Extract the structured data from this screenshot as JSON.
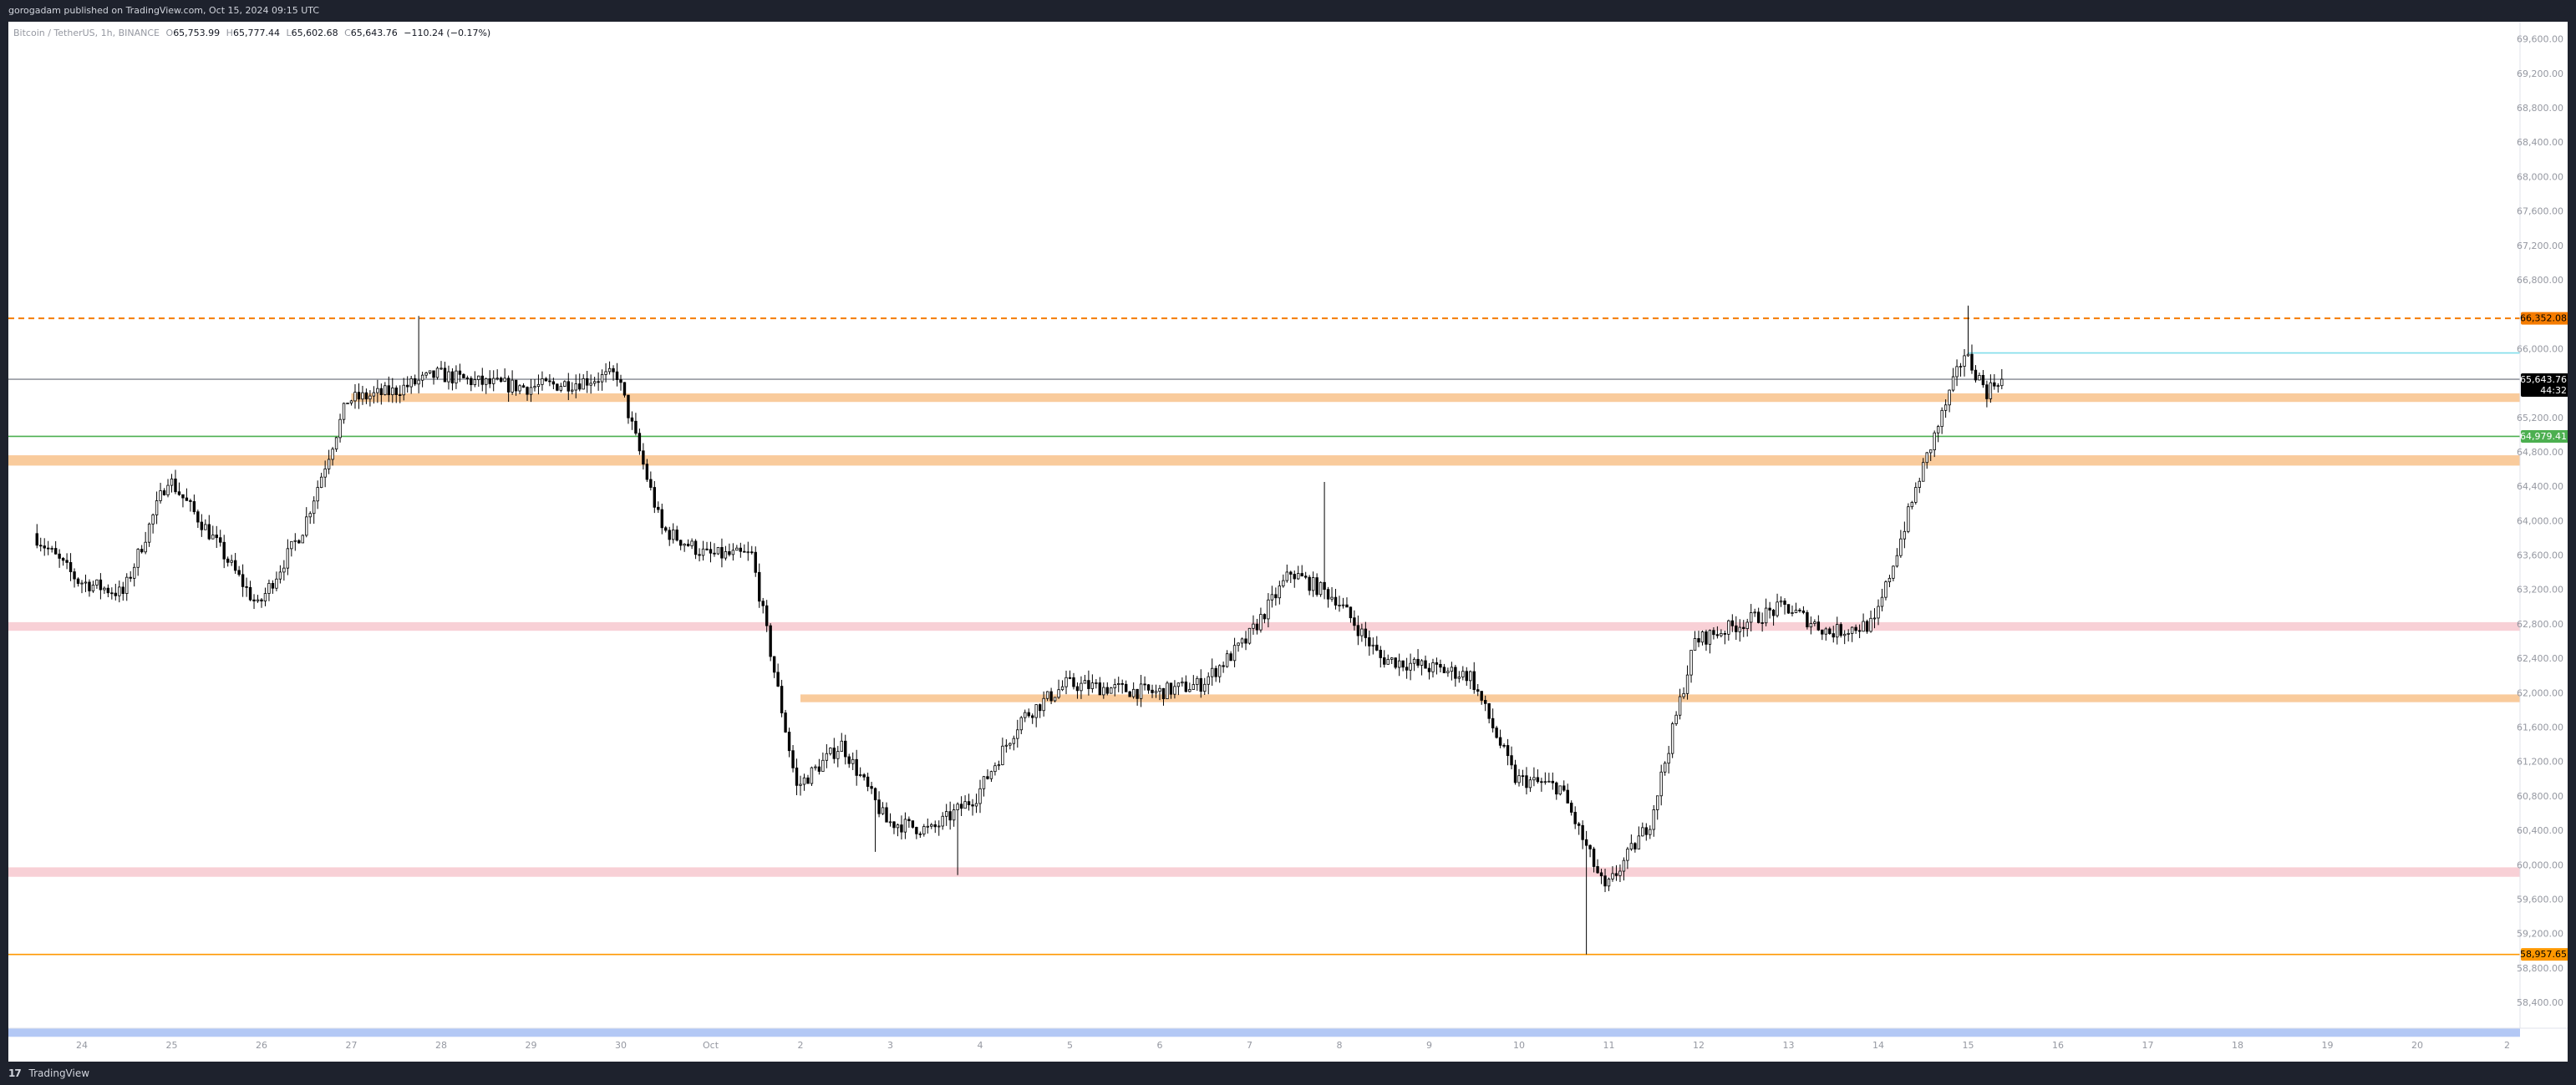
{
  "header": {
    "publish_text": "gorogadam published on TradingView.com, Oct 15, 2024 09:15 UTC"
  },
  "legend": {
    "symbol": "Bitcoin / TetherUS, 1h, BINANCE",
    "open_label": "O",
    "open": "65,753.99",
    "high_label": "H",
    "high": "65,777.44",
    "low_label": "L",
    "low": "65,602.68",
    "close_label": "C",
    "close": "65,643.76",
    "change": "−110.24 (−0.17%)"
  },
  "footer": {
    "logo_text": "17",
    "brand": "TradingView"
  },
  "price_scale": {
    "ticks": [
      "69,600.00",
      "69,200.00",
      "68,800.00",
      "68,400.00",
      "68,000.00",
      "67,600.00",
      "67,200.00",
      "66,800.00",
      "66,000.00",
      "65,200.00",
      "64,800.00",
      "64,400.00",
      "64,000.00",
      "63,600.00",
      "63,200.00",
      "62,800.00",
      "62,400.00",
      "62,000.00",
      "61,600.00",
      "61,200.00",
      "60,800.00",
      "60,400.00",
      "60,000.00",
      "59,600.00",
      "59,200.00",
      "58,800.00",
      "58,400.00"
    ],
    "badges": [
      {
        "value": "66,352.08",
        "color": "#f57c00",
        "text_color": "#000000"
      },
      {
        "value": "65,643.76",
        "sub": "44:32",
        "color": "#000000",
        "text_color": "#ffffff"
      },
      {
        "value": "64,979.41",
        "color": "#4caf50",
        "text_color": "#ffffff"
      },
      {
        "value": "58,957.65",
        "color": "#ff9800",
        "text_color": "#000000"
      }
    ]
  },
  "time_scale": {
    "ticks": [
      "24",
      "25",
      "26",
      "27",
      "28",
      "29",
      "30",
      "Oct",
      "2",
      "3",
      "4",
      "5",
      "6",
      "7",
      "8",
      "9",
      "10",
      "11",
      "12",
      "13",
      "14",
      "15",
      "16",
      "17",
      "18",
      "19",
      "20",
      "2"
    ]
  },
  "colors": {
    "background": "#ffffff",
    "candle": "#000000",
    "orange_zone": "#f9cb9c",
    "pink_zone": "#f8d0d6",
    "blue_band": "#b3c8f5",
    "green_line": "#4caf50",
    "dashed_line": "#f57c00",
    "level_line": "#ff9800",
    "cyan_line": "#80deea"
  },
  "chart_data": {
    "type": "candlestick",
    "symbol": "BTCUSDT",
    "interval": "1h",
    "ylim": [
      58100,
      69800
    ],
    "horizontal_levels": [
      {
        "price": 66352.08,
        "style": "dashed",
        "color": "#f57c00"
      },
      {
        "price": 65950,
        "style": "solid",
        "color": "#80deea",
        "from": "Oct 15"
      },
      {
        "price": 65643.76,
        "style": "solid",
        "color": "#9598a1"
      },
      {
        "price": 64979.41,
        "style": "solid",
        "color": "#4caf50"
      },
      {
        "price": 58957.65,
        "style": "solid",
        "color": "#ff9800"
      }
    ],
    "zones": [
      {
        "from": 65380,
        "to": 65480,
        "color": "#f9cb9c",
        "start": "Sep 27"
      },
      {
        "from": 64640,
        "to": 64760,
        "color": "#f9cb9c",
        "start": "Sep 23"
      },
      {
        "from": 62720,
        "to": 62820,
        "color": "#f8d0d6",
        "start": "Sep 23"
      },
      {
        "from": 61890,
        "to": 61980,
        "color": "#f9cb9c",
        "start": "Oct 2"
      },
      {
        "from": 59860,
        "to": 59970,
        "color": "#f8d0d6",
        "start": "Sep 23"
      },
      {
        "from": 58000,
        "to": 58100,
        "color": "#b3c8f5",
        "start": "Sep 23"
      }
    ],
    "path": [
      {
        "x": "Sep 23 12:00",
        "y": 63850
      },
      {
        "x": "Sep 24 00:00",
        "y": 63300
      },
      {
        "x": "Sep 24 12:00",
        "y": 63150
      },
      {
        "x": "Sep 25 00:00",
        "y": 64500
      },
      {
        "x": "Sep 25 12:00",
        "y": 63800
      },
      {
        "x": "Sep 26 00:00",
        "y": 63000
      },
      {
        "x": "Sep 26 12:00",
        "y": 63900
      },
      {
        "x": "Sep 27 00:00",
        "y": 65400
      },
      {
        "x": "Sep 27 12:00",
        "y": 65500
      },
      {
        "x": "Sep 28 00:00",
        "y": 65700
      },
      {
        "x": "Sep 28 12:00",
        "y": 65600
      },
      {
        "x": "Sep 29 00:00",
        "y": 65550
      },
      {
        "x": "Sep 29 12:00",
        "y": 65600
      },
      {
        "x": "Sep 30 00:00",
        "y": 65700
      },
      {
        "x": "Sep 30 12:00",
        "y": 63900
      },
      {
        "x": "Oct 1 00:00",
        "y": 63600
      },
      {
        "x": "Oct 1 12:00",
        "y": 63600
      },
      {
        "x": "Oct 2 00:00",
        "y": 60900
      },
      {
        "x": "Oct 2 12:00",
        "y": 61400
      },
      {
        "x": "Oct 3 00:00",
        "y": 60500
      },
      {
        "x": "Oct 3 12:00",
        "y": 60400
      },
      {
        "x": "Oct 4 00:00",
        "y": 60800
      },
      {
        "x": "Oct 4 12:00",
        "y": 61700
      },
      {
        "x": "Oct 5 00:00",
        "y": 62100
      },
      {
        "x": "Oct 5 12:00",
        "y": 62050
      },
      {
        "x": "Oct 6 00:00",
        "y": 62000
      },
      {
        "x": "Oct 6 12:00",
        "y": 62100
      },
      {
        "x": "Oct 7 00:00",
        "y": 62600
      },
      {
        "x": "Oct 7 12:00",
        "y": 63400
      },
      {
        "x": "Oct 8 00:00",
        "y": 63100
      },
      {
        "x": "Oct 8 12:00",
        "y": 62400
      },
      {
        "x": "Oct 9 00:00",
        "y": 62300
      },
      {
        "x": "Oct 9 12:00",
        "y": 62200
      },
      {
        "x": "Oct 10 00:00",
        "y": 61000
      },
      {
        "x": "Oct 10 12:00",
        "y": 60900
      },
      {
        "x": "Oct 11 00:00",
        "y": 59700
      },
      {
        "x": "Oct 11 12:00",
        "y": 60500
      },
      {
        "x": "Oct 12 00:00",
        "y": 62600
      },
      {
        "x": "Oct 12 12:00",
        "y": 62800
      },
      {
        "x": "Oct 13 00:00",
        "y": 63000
      },
      {
        "x": "Oct 13 12:00",
        "y": 62700
      },
      {
        "x": "Oct 14 00:00",
        "y": 62800
      },
      {
        "x": "Oct 14 12:00",
        "y": 64500
      },
      {
        "x": "Oct 15 00:00",
        "y": 65950
      },
      {
        "x": "Oct 15 06:00",
        "y": 65500
      },
      {
        "x": "Oct 15 09:00",
        "y": 65643.76
      }
    ],
    "extremes": [
      {
        "x": "Sep 27 18:00",
        "y": 66380
      },
      {
        "x": "Oct 2 20:00",
        "y": 60150
      },
      {
        "x": "Oct 3 18:00",
        "y": 59880
      },
      {
        "x": "Oct 7 20:00",
        "y": 64450
      },
      {
        "x": "Oct 10 18:00",
        "y": 58957.65
      },
      {
        "x": "Oct 15 00:00",
        "y": 66500
      }
    ]
  }
}
